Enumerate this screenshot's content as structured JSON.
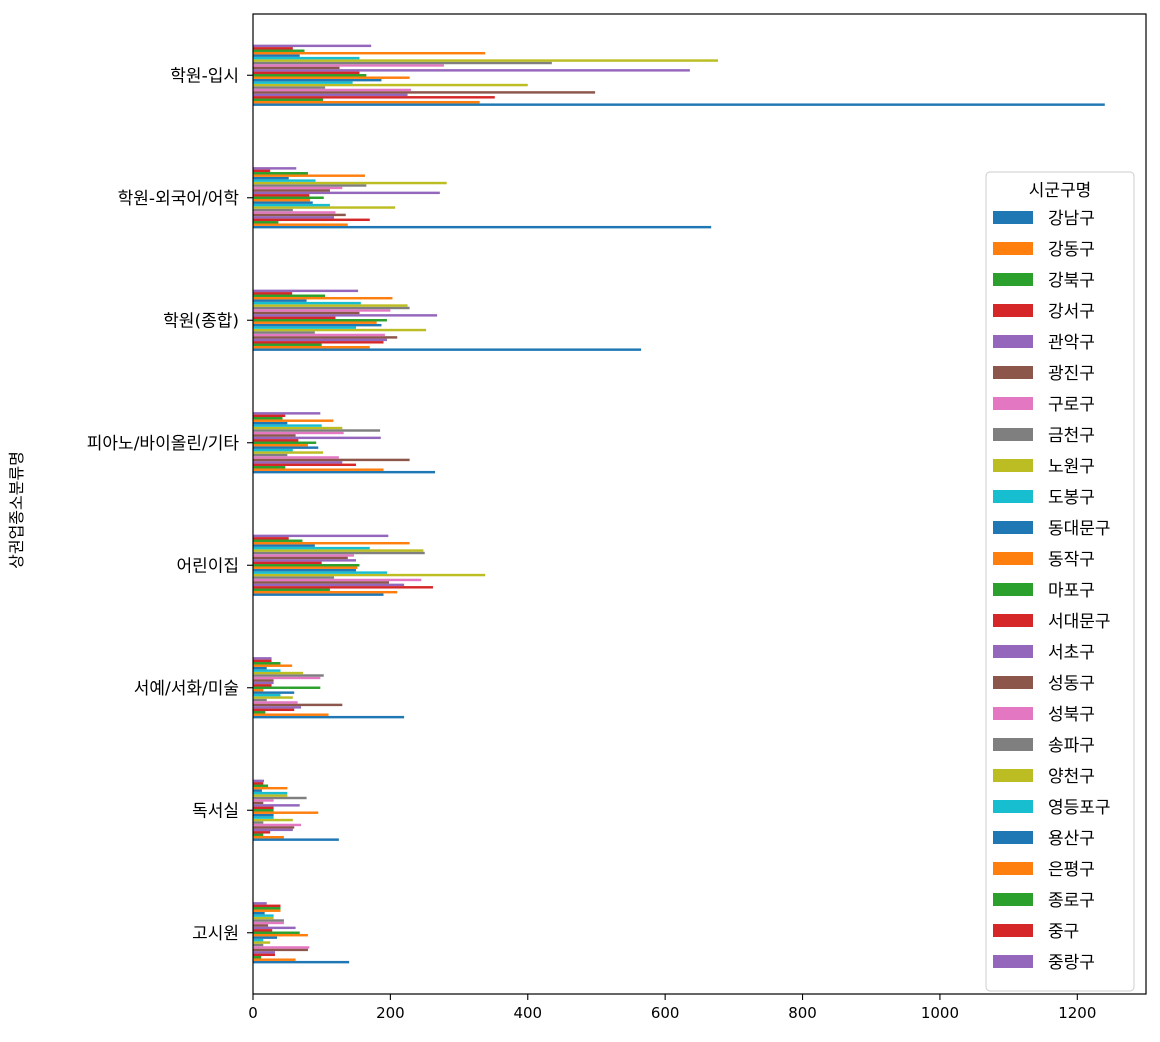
{
  "chart_data": {
    "type": "bar",
    "orientation": "horizontal",
    "ylabel": "상권업종소분류명",
    "xlabel": "",
    "xlim": [
      0,
      1300
    ],
    "xticks": [
      0,
      200,
      400,
      600,
      800,
      1000,
      1200
    ],
    "legend_title": "시군구명",
    "legend_position": "right",
    "categories": [
      "학원-입시",
      "학원-외국어/어학",
      "학원(종합)",
      "피아노/바이올린/기타",
      "어린이집",
      "서예/서화/미술",
      "독서실",
      "고시원"
    ],
    "series": [
      {
        "name": "강남구",
        "color": "#1f77b4",
        "values": [
          1240,
          667,
          565,
          265,
          190,
          220,
          125,
          140
        ]
      },
      {
        "name": "강동구",
        "color": "#ff7f0e",
        "values": [
          330,
          138,
          170,
          190,
          210,
          110,
          45,
          62
        ]
      },
      {
        "name": "강북구",
        "color": "#2ca02c",
        "values": [
          102,
          37,
          100,
          47,
          112,
          18,
          15,
          12
        ]
      },
      {
        "name": "강서구",
        "color": "#d62728",
        "values": [
          352,
          170,
          190,
          150,
          262,
          60,
          25,
          32
        ]
      },
      {
        "name": "관악구",
        "color": "#9467bd",
        "values": [
          225,
          118,
          195,
          130,
          220,
          70,
          58,
          32
        ]
      },
      {
        "name": "광진구",
        "color": "#8c564b",
        "values": [
          498,
          135,
          210,
          228,
          198,
          130,
          60,
          80
        ]
      },
      {
        "name": "구로구",
        "color": "#e377c2",
        "values": [
          230,
          120,
          192,
          125,
          245,
          65,
          70,
          82
        ]
      },
      {
        "name": "금천구",
        "color": "#7f7f7f",
        "values": [
          105,
          58,
          90,
          50,
          118,
          20,
          15,
          15
        ]
      },
      {
        "name": "노원구",
        "color": "#bcbd22",
        "values": [
          400,
          207,
          252,
          102,
          338,
          58,
          58,
          25
        ]
      },
      {
        "name": "도봉구",
        "color": "#17becf",
        "values": [
          145,
          112,
          150,
          58,
          195,
          40,
          30,
          15
        ]
      },
      {
        "name": "동대문구",
        "color": "#1f77b4",
        "values": [
          187,
          87,
          187,
          95,
          150,
          60,
          30,
          35
        ]
      },
      {
        "name": "동작구",
        "color": "#ff7f0e",
        "values": [
          228,
          83,
          180,
          80,
          152,
          15,
          95,
          80
        ]
      },
      {
        "name": "마포구",
        "color": "#2ca02c",
        "values": [
          165,
          103,
          195,
          92,
          155,
          98,
          30,
          68
        ]
      },
      {
        "name": "서대문구",
        "color": "#d62728",
        "values": [
          155,
          82,
          120,
          66,
          100,
          27,
          30,
          28
        ]
      },
      {
        "name": "서초구",
        "color": "#9467bd",
        "values": [
          636,
          272,
          268,
          186,
          150,
          30,
          68,
          62
        ]
      },
      {
        "name": "성동구",
        "color": "#8c564b",
        "values": [
          126,
          112,
          155,
          62,
          138,
          30,
          15,
          22
        ]
      },
      {
        "name": "성북구",
        "color": "#e377c2",
        "values": [
          278,
          130,
          200,
          132,
          147,
          98,
          30,
          45
        ]
      },
      {
        "name": "송파구",
        "color": "#7f7f7f",
        "values": [
          435,
          165,
          228,
          185,
          250,
          103,
          78,
          45
        ]
      },
      {
        "name": "양천구",
        "color": "#bcbd22",
        "values": [
          677,
          282,
          225,
          130,
          248,
          73,
          50,
          30
        ]
      },
      {
        "name": "영등포구",
        "color": "#17becf",
        "values": [
          155,
          91,
          157,
          100,
          170,
          40,
          50,
          30
        ]
      },
      {
        "name": "용산구",
        "color": "#1f77b4",
        "values": [
          68,
          52,
          78,
          50,
          90,
          20,
          13,
          17
        ]
      },
      {
        "name": "은평구",
        "color": "#ff7f0e",
        "values": [
          338,
          163,
          203,
          117,
          228,
          57,
          50,
          40
        ]
      },
      {
        "name": "종로구",
        "color": "#2ca02c",
        "values": [
          75,
          80,
          105,
          43,
          72,
          40,
          22,
          40
        ]
      },
      {
        "name": "중구",
        "color": "#d62728",
        "values": [
          58,
          25,
          57,
          47,
          52,
          27,
          15,
          40
        ]
      },
      {
        "name": "중랑구",
        "color": "#9467bd",
        "values": [
          172,
          63,
          153,
          98,
          197,
          27,
          16,
          20
        ]
      }
    ]
  }
}
